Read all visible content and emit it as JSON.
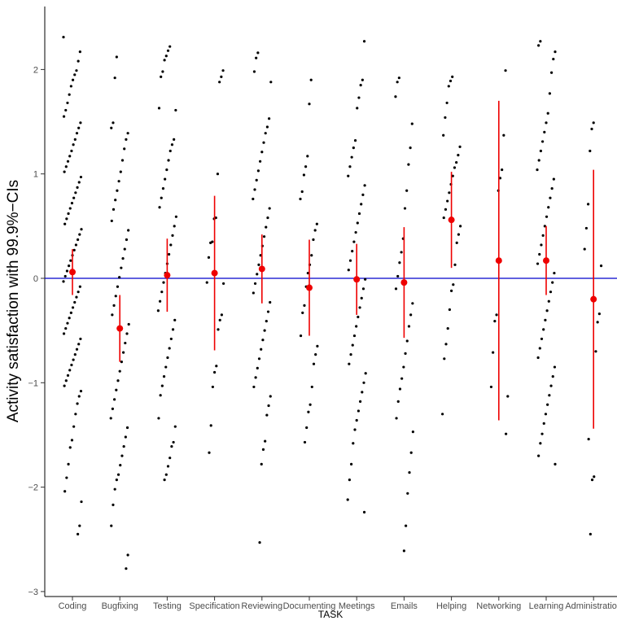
{
  "chart_data": {
    "type": "scatter",
    "title": "",
    "xlabel": "TASK",
    "ylabel": "Activity satisfaction with 99.9%−CIs",
    "ylim": [
      -3.1,
      2.5
    ],
    "y_ticks": [
      -3,
      -2,
      -1,
      0,
      1,
      2
    ],
    "y_tick_labels": [
      "−3",
      "−2",
      "−1",
      "0",
      "1",
      "2"
    ],
    "grid": false,
    "reference_line": {
      "y": 0,
      "color": "#0000cc"
    },
    "point_color": "#000000",
    "estimate_color": "#ee0000",
    "categories": [
      "Coding",
      "Bugfixing",
      "Testing",
      "Specification",
      "Reviewing",
      "Documenting",
      "Meetings",
      "Emails",
      "Helping",
      "Networking",
      "Learning",
      "Administration"
    ],
    "estimates": [
      {
        "category": "Coding",
        "mean": 0.06,
        "lower": -0.16,
        "upper": 0.28
      },
      {
        "category": "Bugfixing",
        "mean": -0.48,
        "lower": -0.8,
        "upper": -0.16
      },
      {
        "category": "Testing",
        "mean": 0.03,
        "lower": -0.32,
        "upper": 0.38
      },
      {
        "category": "Specification",
        "mean": 0.05,
        "lower": -0.69,
        "upper": 0.79
      },
      {
        "category": "Reviewing",
        "mean": 0.09,
        "lower": -0.24,
        "upper": 0.42
      },
      {
        "category": "Documenting",
        "mean": -0.09,
        "lower": -0.55,
        "upper": 0.37
      },
      {
        "category": "Meetings",
        "mean": -0.01,
        "lower": -0.35,
        "upper": 0.33
      },
      {
        "category": "Emails",
        "mean": -0.04,
        "lower": -0.57,
        "upper": 0.49
      },
      {
        "category": "Helping",
        "mean": 0.56,
        "lower": 0.1,
        "upper": 1.02
      },
      {
        "category": "Networking",
        "mean": 0.17,
        "lower": -1.36,
        "upper": 1.7
      },
      {
        "category": "Learning",
        "mean": 0.17,
        "lower": -0.16,
        "upper": 0.5
      },
      {
        "category": "Administration",
        "mean": -0.2,
        "lower": -1.44,
        "upper": 1.04
      }
    ],
    "raw_points": [
      {
        "category": "Coding",
        "values": [
          2.31,
          2.17,
          2.08,
          1.99,
          1.95,
          1.9,
          1.84,
          1.76,
          1.68,
          1.61,
          1.55,
          1.49,
          1.44,
          1.39,
          1.33,
          1.28,
          1.22,
          1.17,
          1.12,
          1.07,
          1.02,
          0.97,
          0.92,
          0.87,
          0.82,
          0.77,
          0.72,
          0.67,
          0.62,
          0.57,
          0.52,
          0.47,
          0.42,
          0.37,
          0.32,
          0.27,
          0.22,
          0.17,
          0.12,
          0.07,
          0.02,
          -0.03,
          -0.08,
          -0.13,
          -0.18,
          -0.23,
          -0.28,
          -0.33,
          -0.38,
          -0.43,
          -0.48,
          -0.53,
          -0.58,
          -0.63,
          -0.68,
          -0.73,
          -0.78,
          -0.83,
          -0.88,
          -0.93,
          -0.98,
          -1.03,
          -1.08,
          -1.13,
          -1.2,
          -1.3,
          -1.42,
          -1.55,
          -1.62,
          -1.78,
          -1.91,
          -2.04,
          -2.14,
          -2.37,
          -2.45
        ]
      },
      {
        "category": "Bugfixing",
        "values": [
          2.12,
          1.92,
          1.49,
          1.44,
          1.39,
          1.33,
          1.24,
          1.13,
          1.02,
          0.93,
          0.84,
          0.75,
          0.66,
          0.55,
          0.46,
          0.37,
          0.28,
          0.19,
          0.1,
          0.01,
          -0.08,
          -0.17,
          -0.26,
          -0.35,
          -0.44,
          -0.53,
          -0.62,
          -0.71,
          -0.8,
          -0.89,
          -0.98,
          -1.07,
          -1.16,
          -1.25,
          -1.34,
          -1.43,
          -1.52,
          -1.61,
          -1.7,
          -1.79,
          -1.88,
          -1.93,
          -2.02,
          -2.17,
          -2.37,
          -2.65,
          -2.78
        ]
      },
      {
        "category": "Testing",
        "values": [
          2.22,
          2.18,
          2.13,
          2.09,
          1.98,
          1.93,
          1.63,
          1.61,
          1.33,
          1.28,
          1.22,
          1.13,
          1.04,
          0.95,
          0.86,
          0.77,
          0.68,
          0.59,
          0.5,
          0.41,
          0.32,
          0.23,
          0.14,
          0.05,
          -0.04,
          -0.13,
          -0.22,
          -0.31,
          -0.4,
          -0.49,
          -0.58,
          -0.67,
          -0.76,
          -0.85,
          -0.94,
          -1.03,
          -1.12,
          -1.34,
          -1.42,
          -1.57,
          -1.61,
          -1.72,
          -1.8,
          -1.88,
          -1.93
        ]
      },
      {
        "category": "Specification",
        "values": [
          1.99,
          1.93,
          1.88,
          1.0,
          0.58,
          0.57,
          0.35,
          0.34,
          0.2,
          -0.04,
          -0.05,
          -0.35,
          -0.4,
          -0.49,
          -0.84,
          -0.9,
          -1.04,
          -1.41,
          -1.67
        ]
      },
      {
        "category": "Reviewing",
        "values": [
          2.16,
          2.11,
          1.98,
          1.88,
          1.53,
          1.45,
          1.39,
          1.3,
          1.21,
          1.12,
          1.03,
          0.94,
          0.85,
          0.76,
          0.67,
          0.58,
          0.49,
          0.4,
          0.31,
          0.22,
          0.13,
          0.04,
          -0.05,
          -0.14,
          -0.23,
          -0.32,
          -0.41,
          -0.5,
          -0.59,
          -0.68,
          -0.77,
          -0.86,
          -0.95,
          -1.04,
          -1.13,
          -1.22,
          -1.31,
          -1.56,
          -1.64,
          -1.78,
          -2.53
        ]
      },
      {
        "category": "Documenting",
        "values": [
          1.9,
          1.67,
          1.17,
          1.07,
          0.99,
          0.83,
          0.76,
          0.52,
          0.46,
          0.37,
          0.22,
          0.13,
          0.05,
          -0.08,
          -0.26,
          -0.33,
          -0.55,
          -0.65,
          -0.73,
          -0.82,
          -1.04,
          -1.21,
          -1.28,
          -1.43,
          -1.57
        ]
      },
      {
        "category": "Meetings",
        "values": [
          2.27,
          1.9,
          1.85,
          1.73,
          1.63,
          1.32,
          1.25,
          1.16,
          1.07,
          0.98,
          0.89,
          0.8,
          0.71,
          0.62,
          0.53,
          0.44,
          0.35,
          0.26,
          0.17,
          0.08,
          -0.01,
          -0.1,
          -0.19,
          -0.28,
          -0.37,
          -0.46,
          -0.55,
          -0.64,
          -0.73,
          -0.82,
          -0.91,
          -1.0,
          -1.09,
          -1.18,
          -1.27,
          -1.36,
          -1.45,
          -1.58,
          -1.78,
          -1.93,
          -2.12,
          -2.24
        ]
      },
      {
        "category": "Emails",
        "values": [
          1.92,
          1.88,
          1.74,
          1.48,
          1.25,
          1.09,
          0.84,
          0.67,
          0.38,
          0.25,
          0.15,
          0.02,
          -0.1,
          -0.24,
          -0.35,
          -0.46,
          -0.6,
          -0.72,
          -0.85,
          -0.96,
          -1.06,
          -1.18,
          -1.34,
          -1.47,
          -1.67,
          -1.86,
          -2.06,
          -2.37,
          -2.61
        ]
      },
      {
        "category": "Helping",
        "values": [
          1.93,
          1.89,
          1.84,
          1.68,
          1.54,
          1.37,
          1.26,
          1.18,
          1.11,
          1.06,
          0.98,
          0.9,
          0.82,
          0.74,
          0.66,
          0.58,
          0.5,
          0.42,
          0.34,
          0.13,
          -0.06,
          -0.12,
          -0.3,
          -0.48,
          -0.63,
          -0.77,
          -1.3
        ]
      },
      {
        "category": "Networking",
        "values": [
          1.99,
          1.37,
          1.04,
          0.96,
          0.84,
          -0.35,
          -0.41,
          -0.71,
          -1.04,
          -1.13,
          -1.49
        ]
      },
      {
        "category": "Learning",
        "values": [
          2.27,
          2.23,
          2.17,
          2.1,
          1.97,
          1.77,
          1.58,
          1.49,
          1.4,
          1.31,
          1.22,
          1.13,
          1.04,
          0.95,
          0.86,
          0.77,
          0.68,
          0.59,
          0.5,
          0.41,
          0.32,
          0.23,
          0.14,
          0.05,
          -0.04,
          -0.13,
          -0.22,
          -0.31,
          -0.4,
          -0.49,
          -0.58,
          -0.67,
          -0.76,
          -0.85,
          -0.94,
          -1.03,
          -1.12,
          -1.21,
          -1.3,
          -1.39,
          -1.49,
          -1.58,
          -1.7,
          -1.78
        ]
      },
      {
        "category": "Administration",
        "values": [
          1.49,
          1.43,
          1.22,
          0.71,
          0.48,
          0.28,
          0.12,
          -0.34,
          -0.42,
          -0.7,
          -1.9,
          -1.93,
          -2.45,
          -1.54
        ]
      }
    ]
  }
}
